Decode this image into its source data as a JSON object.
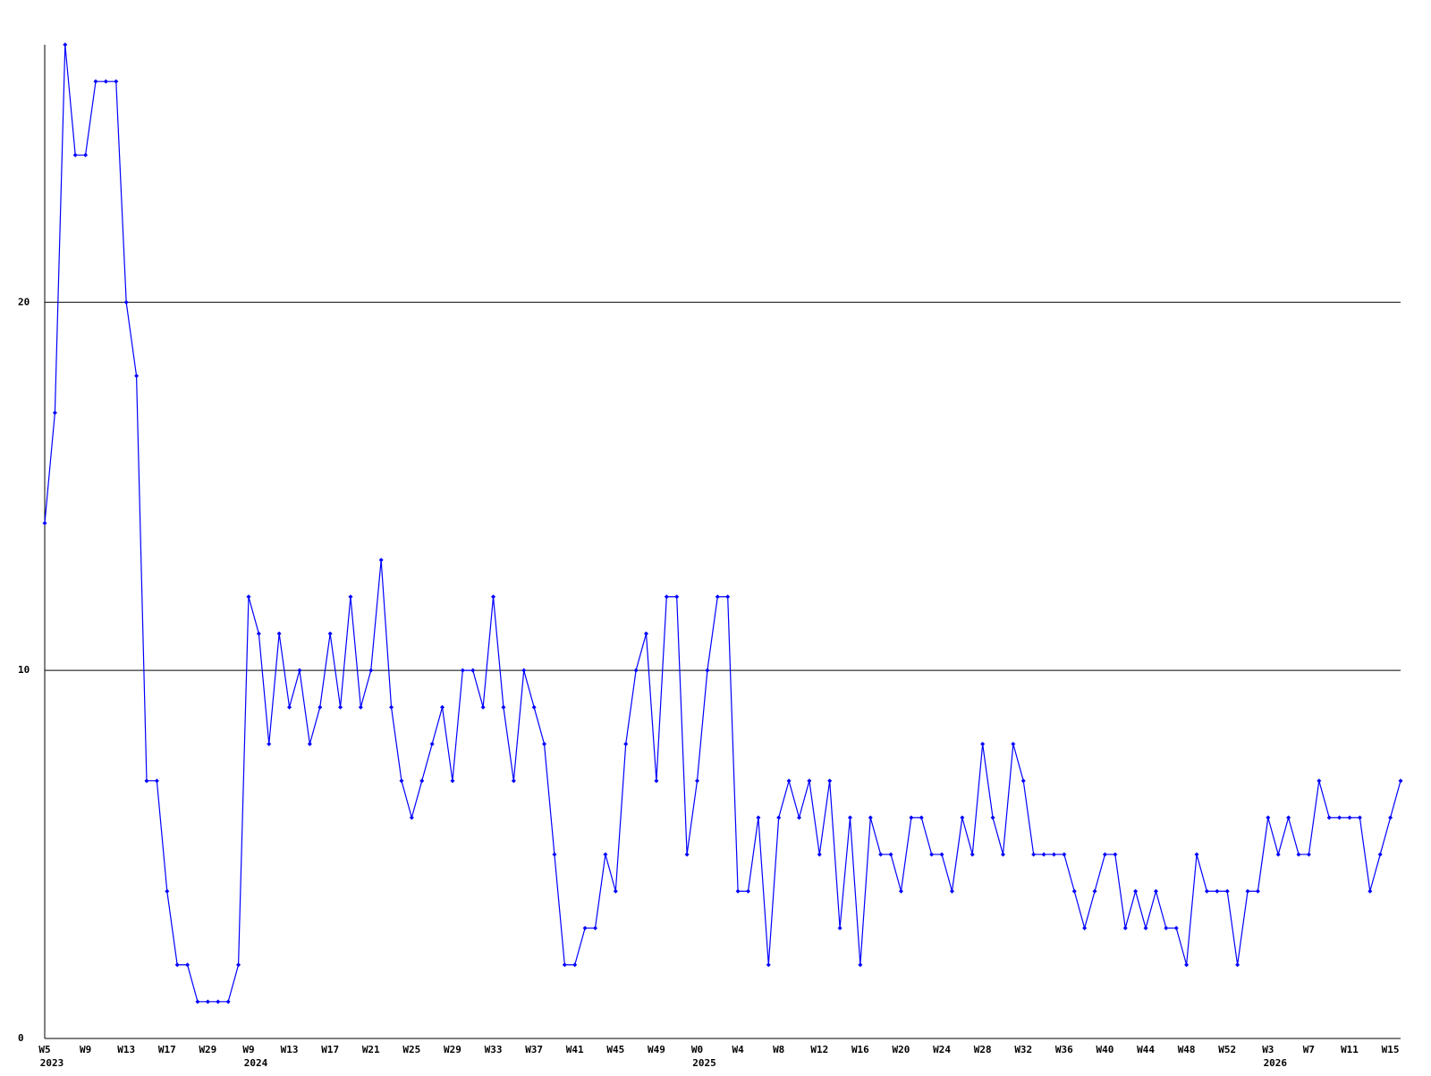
{
  "chart_data": {
    "type": "line",
    "categories": [
      "W5",
      null,
      null,
      null,
      "W9",
      null,
      null,
      null,
      "W13",
      null,
      null,
      null,
      "W17",
      null,
      null,
      null,
      "W29",
      null,
      null,
      null,
      "W9",
      null,
      null,
      null,
      "W13",
      null,
      null,
      null,
      "W17",
      null,
      null,
      null,
      "W21",
      null,
      null,
      null,
      "W25",
      null,
      null,
      null,
      "W29",
      null,
      null,
      null,
      "W33",
      null,
      null,
      null,
      "W37",
      null,
      null,
      null,
      "W41",
      null,
      null,
      null,
      "W45",
      null,
      null,
      null,
      "W49",
      null,
      null,
      null,
      "W0",
      null,
      null,
      null,
      "W4",
      null,
      null,
      null,
      "W8",
      null,
      null,
      null,
      "W12",
      null,
      null,
      null,
      "W16",
      null,
      null,
      null,
      "W20",
      null,
      null,
      null,
      "W24",
      null,
      null,
      null,
      "W28",
      null,
      null,
      null,
      "W32",
      null,
      null,
      null,
      "W36",
      null,
      null,
      null,
      "W40",
      null,
      null,
      null,
      "W44",
      null,
      null,
      null,
      "W48",
      null,
      null,
      null,
      "W52",
      null,
      null,
      null,
      "W3",
      null,
      null,
      null,
      "W7",
      null,
      null,
      null,
      "W11",
      null,
      null,
      null,
      "W15",
      null
    ],
    "years": [
      "2023",
      null,
      null,
      null,
      null,
      null,
      null,
      null,
      null,
      null,
      null,
      null,
      null,
      null,
      null,
      null,
      null,
      null,
      null,
      null,
      "2024",
      null,
      null,
      null,
      null,
      null,
      null,
      null,
      null,
      null,
      null,
      null,
      null,
      null,
      null,
      null,
      null,
      null,
      null,
      null,
      null,
      null,
      null,
      null,
      null,
      null,
      null,
      null,
      null,
      null,
      null,
      null,
      null,
      null,
      null,
      null,
      null,
      null,
      null,
      null,
      null,
      null,
      null,
      null,
      "2025",
      null,
      null,
      null,
      null,
      null,
      null,
      null,
      null,
      null,
      null,
      null,
      null,
      null,
      null,
      null,
      null,
      null,
      null,
      null,
      null,
      null,
      null,
      null,
      null,
      null,
      null,
      null,
      null,
      null,
      null,
      null,
      null,
      null,
      null,
      null,
      null,
      null,
      null,
      null,
      null,
      null,
      null,
      null,
      null,
      null,
      null,
      null,
      null,
      null,
      null,
      null,
      null,
      null,
      null,
      null,
      "2026",
      null,
      null,
      null,
      null,
      null,
      null,
      null,
      null,
      null,
      null,
      null,
      null,
      null
    ],
    "series": [
      {
        "color": "#0000ff",
        "values": [
          14,
          17,
          27,
          24,
          24,
          26,
          26,
          26,
          20,
          18,
          7,
          7,
          4,
          2,
          2,
          1,
          1,
          1,
          1,
          2,
          12,
          11,
          8,
          11,
          9,
          10,
          8,
          9,
          11,
          9,
          12,
          9,
          10,
          13,
          9,
          7,
          6,
          7,
          8,
          9,
          7,
          10,
          10,
          9,
          12,
          9,
          7,
          10,
          9,
          8,
          5,
          2,
          2,
          3,
          3,
          5,
          4,
          8,
          10,
          11,
          7,
          12,
          12,
          5,
          7,
          10,
          12,
          12,
          4,
          4,
          6,
          2,
          6,
          7,
          6,
          7,
          5,
          7,
          3,
          6,
          2,
          6,
          5,
          5,
          4,
          6,
          6,
          5,
          5,
          4,
          6,
          5,
          8,
          6,
          5,
          8,
          7,
          5,
          5,
          5,
          5,
          4,
          3,
          4,
          5,
          5,
          3,
          4,
          3,
          4,
          3,
          3,
          2,
          5,
          4,
          4,
          4,
          2,
          4,
          4,
          6,
          5,
          6,
          5,
          5,
          7,
          6,
          6,
          6,
          6,
          4,
          5,
          6,
          7
        ]
      }
    ],
    "ylim": [
      0,
      27
    ],
    "yticks": [
      0,
      10,
      20
    ],
    "grid": true
  }
}
